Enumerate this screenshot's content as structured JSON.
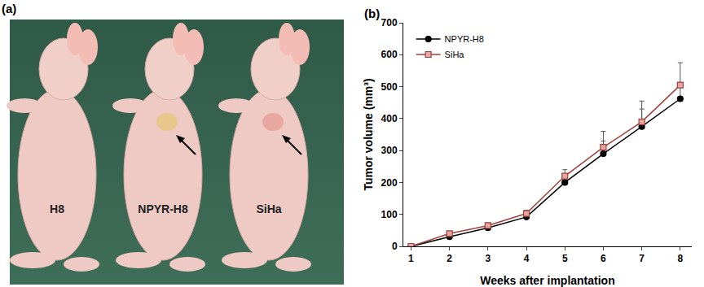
{
  "panel_a": {
    "label": "(a)",
    "mice": [
      "H8",
      "NPYR-H8",
      "SiHa"
    ]
  },
  "chart_data": {
    "type": "line",
    "panel_label": "(b)",
    "x_label": "Weeks after implantation",
    "y_label": "Tumor volume (mm³)",
    "x": [
      1,
      2,
      3,
      4,
      5,
      6,
      7,
      8
    ],
    "series": [
      {
        "name": "NPYR-H8",
        "color": "#000000",
        "marker": "circle",
        "values": [
          0,
          30,
          58,
          92,
          200,
          290,
          375,
          462
        ],
        "error": [
          0,
          4,
          6,
          8,
          15,
          40,
          55,
          50
        ]
      },
      {
        "name": "SiHa",
        "color": "#a0403c",
        "marker": "square",
        "values": [
          0,
          40,
          65,
          103,
          220,
          310,
          390,
          505
        ],
        "error": [
          0,
          5,
          8,
          10,
          20,
          50,
          65,
          70
        ]
      }
    ],
    "xlim": [
      0.8,
      8.3
    ],
    "xticks": [
      1,
      2,
      3,
      4,
      5,
      6,
      7,
      8
    ],
    "ylim": [
      0,
      700
    ],
    "yticks": [
      0,
      100,
      200,
      300,
      400,
      500,
      600,
      700
    ],
    "grid": false,
    "legend": "top-left"
  }
}
